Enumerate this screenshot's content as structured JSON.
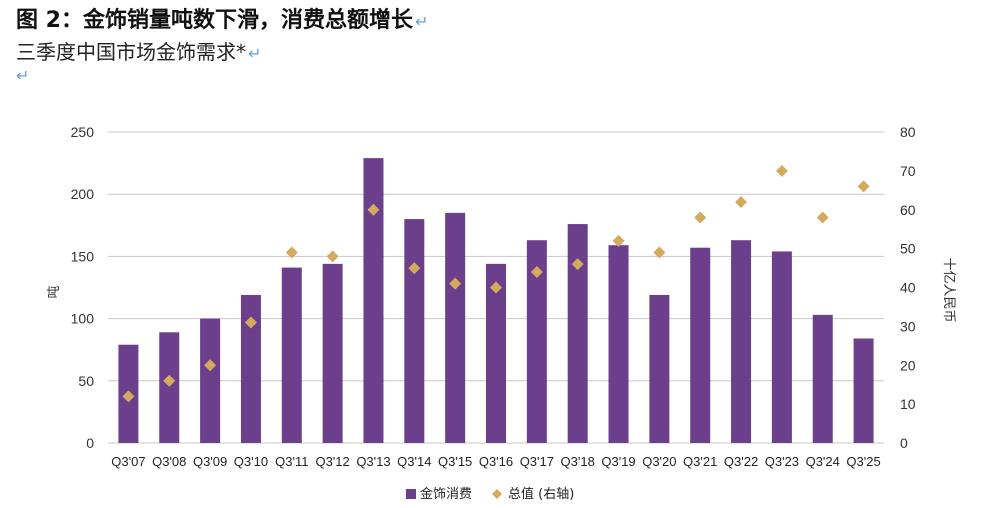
{
  "header": {
    "title": "图 2：金饰销量吨数下滑，消费总额增长",
    "subtitle": "三季度中国市场金饰需求*",
    "return_mark": "↵"
  },
  "colors": {
    "bar": "#6b3f8c",
    "marker": "#d4aa5e",
    "grid": "#c8c8c8"
  },
  "chart_data": {
    "type": "bar",
    "categories": [
      "Q3'07",
      "Q3'08",
      "Q3'09",
      "Q3'10",
      "Q3'11",
      "Q3'12",
      "Q3'13",
      "Q3'14",
      "Q3'15",
      "Q3'16",
      "Q3'17",
      "Q3'18",
      "Q3'19",
      "Q3'20",
      "Q3'21",
      "Q3'22",
      "Q3'23",
      "Q3'24",
      "Q3'25"
    ],
    "series": [
      {
        "name": "金饰消费",
        "kind": "bar",
        "axis": "left",
        "values": [
          79,
          89,
          100,
          119,
          141,
          144,
          229,
          180,
          185,
          144,
          163,
          176,
          159,
          119,
          157,
          163,
          154,
          103,
          84
        ]
      },
      {
        "name": "总值 (右轴)",
        "kind": "scatter",
        "marker": "diamond",
        "axis": "right",
        "values": [
          12,
          16,
          20,
          31,
          49,
          48,
          60,
          45,
          41,
          40,
          44,
          46,
          52,
          49,
          58,
          62,
          70,
          58,
          66
        ]
      }
    ],
    "ylabel": "吨",
    "y2label": "十亿人民币",
    "ylim": [
      0,
      250
    ],
    "y2lim": [
      0,
      80
    ],
    "yticks": [
      0,
      50,
      100,
      150,
      200,
      250
    ],
    "y2ticks": [
      0,
      10,
      20,
      30,
      40,
      50,
      60,
      70,
      80
    ],
    "grid": true,
    "legend": "bottom-center"
  }
}
